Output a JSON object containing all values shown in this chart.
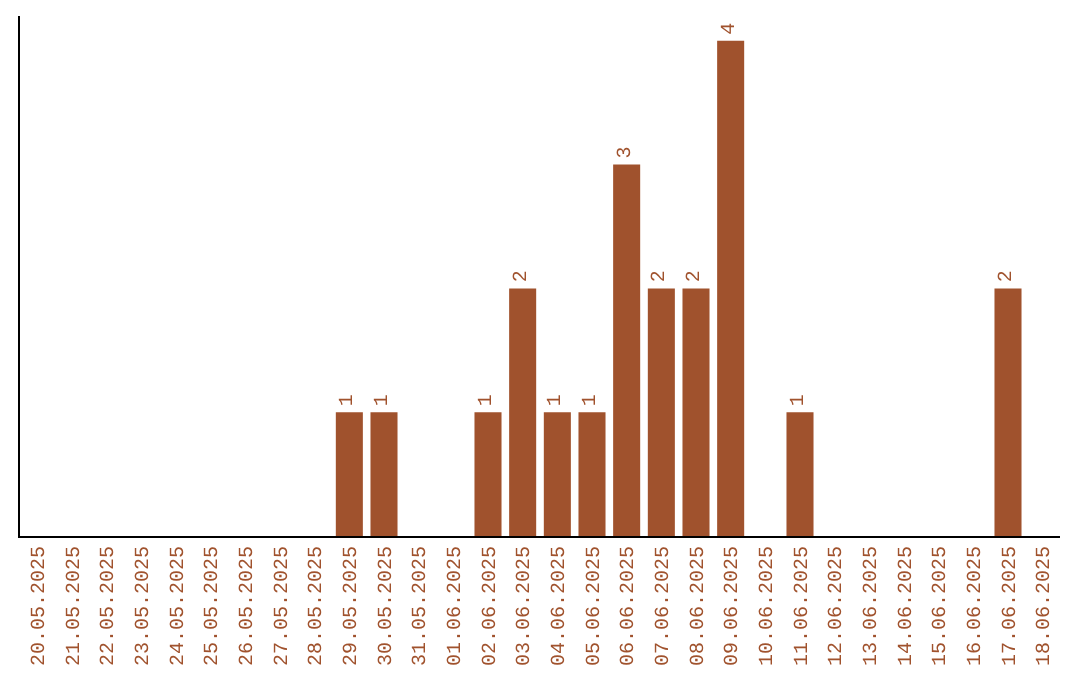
{
  "chart_data": {
    "type": "bar",
    "categories": [
      "20.05.2025",
      "21.05.2025",
      "22.05.2025",
      "23.05.2025",
      "24.05.2025",
      "25.05.2025",
      "26.05.2025",
      "27.05.2025",
      "28.05.2025",
      "29.05.2025",
      "30.05.2025",
      "31.05.2025",
      "01.06.2025",
      "02.06.2025",
      "03.06.2025",
      "04.06.2025",
      "05.06.2025",
      "06.06.2025",
      "07.06.2025",
      "08.06.2025",
      "09.06.2025",
      "10.06.2025",
      "11.06.2025",
      "12.06.2025",
      "13.06.2025",
      "14.06.2025",
      "15.06.2025",
      "16.06.2025",
      "17.06.2025",
      "18.06.2025"
    ],
    "values": [
      0,
      0,
      0,
      0,
      0,
      0,
      0,
      0,
      0,
      1,
      1,
      0,
      0,
      1,
      2,
      1,
      1,
      3,
      2,
      2,
      4,
      0,
      1,
      0,
      0,
      0,
      0,
      0,
      2,
      0
    ],
    "value_labels": [
      null,
      null,
      null,
      null,
      null,
      null,
      null,
      null,
      null,
      "1",
      "1",
      null,
      null,
      "1",
      "2",
      "1",
      "1",
      "3",
      "2",
      "2",
      "4",
      null,
      "1",
      null,
      null,
      null,
      null,
      null,
      "2",
      null
    ],
    "color": "#a0522d",
    "tick_labels": "x",
    "legend": false
  }
}
